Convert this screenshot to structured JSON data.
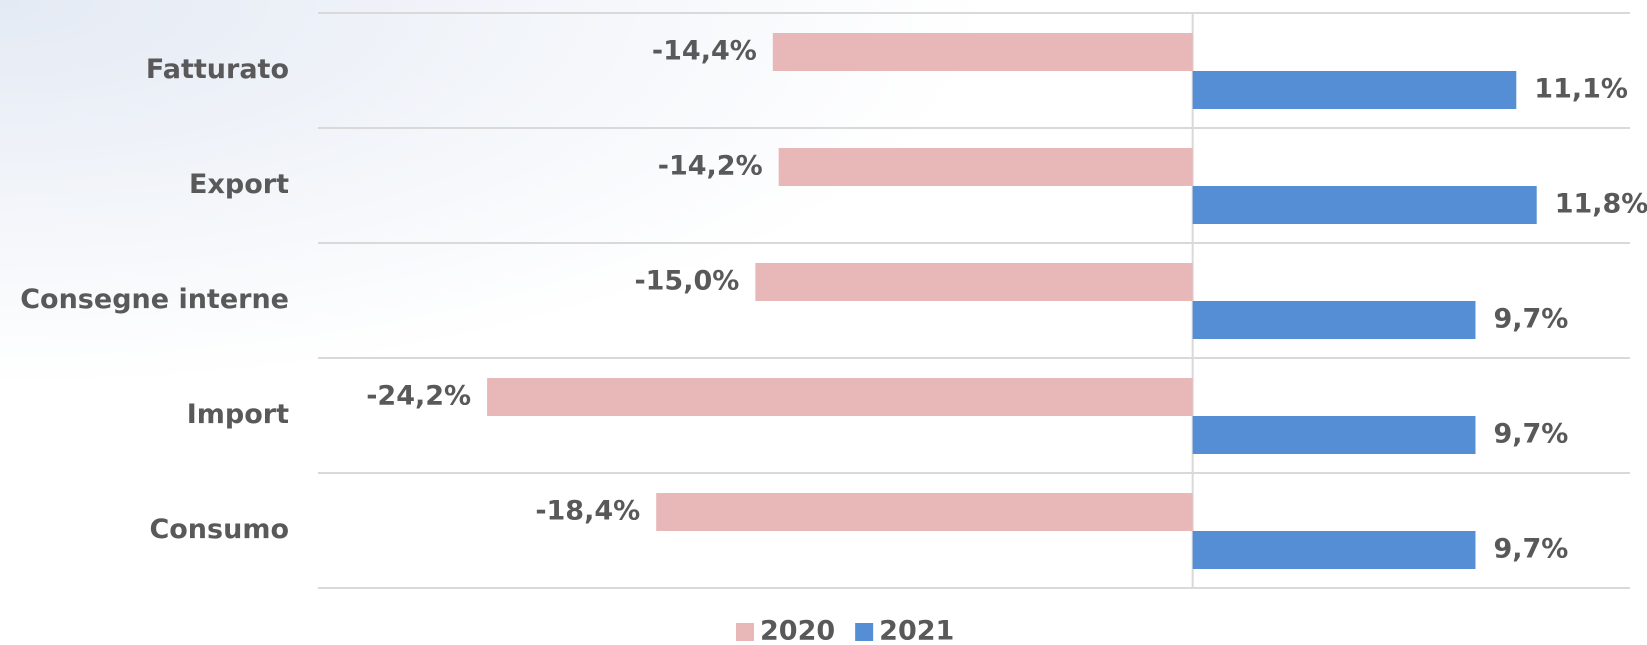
{
  "chart_data": {
    "type": "bar",
    "orientation": "horizontal",
    "categories": [
      "Fatturato",
      "Export",
      "Consegne interne",
      "Import",
      "Consumo"
    ],
    "series": [
      {
        "name": "2020",
        "color": "#e8b8b8",
        "values": [
          -14.4,
          -14.2,
          -15.0,
          -24.2,
          -18.4
        ],
        "value_labels": [
          "-14,4%",
          "-14,2%",
          "-15,0%",
          "-24,2%",
          "-18,4%"
        ]
      },
      {
        "name": "2021",
        "color": "#558ed5",
        "values": [
          11.1,
          11.8,
          9.7,
          9.7,
          9.7
        ],
        "value_labels": [
          "11,1%",
          "11,8%",
          "9,7%",
          "9,7%",
          "9,7%"
        ]
      }
    ],
    "xlim": [
      -30,
      15
    ],
    "legend": "bottom"
  }
}
